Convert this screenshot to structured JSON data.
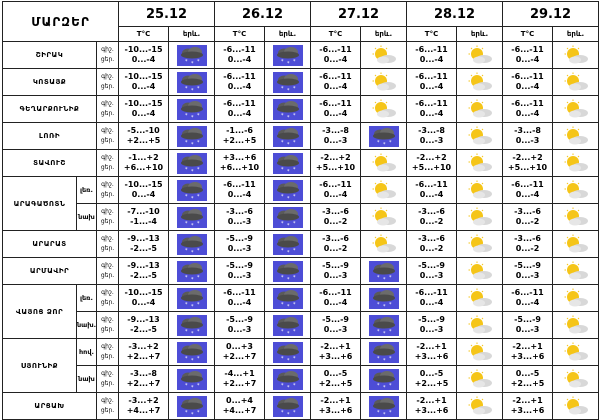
{
  "header": {
    "region_title": "ՄԱՐԶԵՐ",
    "dates": [
      "25.12",
      "26.12",
      "27.12",
      "28.12",
      "29.12"
    ],
    "temp_label": "T°C",
    "icon_label": "երև."
  },
  "labels": {
    "night": "գիշ.",
    "day": "ցեր."
  },
  "regions": [
    {
      "name": "ՇԻՐԱԿ",
      "rows": [
        {
          "sub": "",
          "days": [
            {
              "n": "-10...-15",
              "d": "0...-4",
              "icon": "snow-cloud-icon"
            },
            {
              "n": "-6...-11",
              "d": "0...-4",
              "icon": "snow-cloud-icon"
            },
            {
              "n": "-6...-11",
              "d": "0...-4",
              "icon": "sun-cloud-icon"
            },
            {
              "n": "-6...-11",
              "d": "0...-4",
              "icon": "sun-cloud-icon"
            },
            {
              "n": "-6...-11",
              "d": "0...-4",
              "icon": "sun-cloud-icon"
            }
          ]
        }
      ]
    },
    {
      "name": "ԿՈՏԱՅՔ",
      "rows": [
        {
          "sub": "",
          "days": [
            {
              "n": "-10...-15",
              "d": "0...-4",
              "icon": "snow-cloud-icon"
            },
            {
              "n": "-6...-11",
              "d": "0...-4",
              "icon": "snow-cloud-icon"
            },
            {
              "n": "-6...-11",
              "d": "0...-4",
              "icon": "sun-cloud-icon"
            },
            {
              "n": "-6...-11",
              "d": "0...-4",
              "icon": "sun-cloud-icon"
            },
            {
              "n": "-6...-11",
              "d": "0...-4",
              "icon": "sun-cloud-icon"
            }
          ]
        }
      ]
    },
    {
      "name": "ԳԵՂԱՐՔՈՒՆԻՔ",
      "rows": [
        {
          "sub": "",
          "days": [
            {
              "n": "-10...-15",
              "d": "0...-4",
              "icon": "snow-cloud-icon"
            },
            {
              "n": "-6...-11",
              "d": "0...-4",
              "icon": "snow-cloud-icon"
            },
            {
              "n": "-6...-11",
              "d": "0...-4",
              "icon": "sun-cloud-icon"
            },
            {
              "n": "-6...-11",
              "d": "0...-4",
              "icon": "sun-cloud-icon"
            },
            {
              "n": "-6...-11",
              "d": "0...-4",
              "icon": "sun-cloud-icon"
            }
          ]
        }
      ]
    },
    {
      "name": "ԼՈՌԻ",
      "rows": [
        {
          "sub": "",
          "days": [
            {
              "n": "-5...-10",
              "d": "+2...+5",
              "icon": "snow-cloud-icon"
            },
            {
              "n": "-1...-6",
              "d": "+2...+5",
              "icon": "snow-cloud-icon"
            },
            {
              "n": "-3...-8",
              "d": "0...-3",
              "icon": "snow-cloud-icon"
            },
            {
              "n": "-3...-8",
              "d": "0...-3",
              "icon": "sun-cloud-icon"
            },
            {
              "n": "-3...-8",
              "d": "0...-3",
              "icon": "sun-cloud-icon"
            }
          ]
        }
      ]
    },
    {
      "name": "ՏԱՎՈՒՇ",
      "rows": [
        {
          "sub": "",
          "days": [
            {
              "n": "-1...+2",
              "d": "+6...+10",
              "icon": "snow-cloud-icon"
            },
            {
              "n": "+3...+6",
              "d": "+6...+10",
              "icon": "snow-cloud-icon"
            },
            {
              "n": "-2...+2",
              "d": "+5...+10",
              "icon": "sun-cloud-icon"
            },
            {
              "n": "-2...+2",
              "d": "+5...+10",
              "icon": "sun-cloud-icon"
            },
            {
              "n": "-2...+2",
              "d": "+5...+10",
              "icon": "sun-cloud-icon"
            }
          ]
        }
      ]
    },
    {
      "name": "ԱՐԱԳԱԾՈՏՆ",
      "rows": [
        {
          "sub": "լեռ.",
          "days": [
            {
              "n": "-10...-15",
              "d": "0...-4",
              "icon": "snow-cloud-icon"
            },
            {
              "n": "-6...-11",
              "d": "0...-4",
              "icon": "snow-cloud-icon"
            },
            {
              "n": "-6...-11",
              "d": "0...-4",
              "icon": "sun-cloud-icon"
            },
            {
              "n": "-6...-11",
              "d": "0...-4",
              "icon": "sun-cloud-icon"
            },
            {
              "n": "-6...-11",
              "d": "0...-4",
              "icon": "sun-cloud-icon"
            }
          ]
        },
        {
          "sub": "նախ",
          "days": [
            {
              "n": "-7...-10",
              "d": "-1...-4",
              "icon": "snow-cloud-icon"
            },
            {
              "n": "-3...-6",
              "d": "0...-3",
              "icon": "snow-cloud-icon"
            },
            {
              "n": "-3...-6",
              "d": "0...-2",
              "icon": "sun-cloud-icon"
            },
            {
              "n": "-3...-6",
              "d": "0...-2",
              "icon": "sun-cloud-icon"
            },
            {
              "n": "-3...-6",
              "d": "0...-2",
              "icon": "sun-cloud-icon"
            }
          ]
        }
      ]
    },
    {
      "name": "ԱՐԱՐԱՏ",
      "rows": [
        {
          "sub": "",
          "days": [
            {
              "n": "-9...-13",
              "d": "-2...-5",
              "icon": "snow-cloud-icon"
            },
            {
              "n": "-5...-9",
              "d": "0...-3",
              "icon": "snow-cloud-icon"
            },
            {
              "n": "-3...-6",
              "d": "0...-2",
              "icon": "sun-cloud-icon"
            },
            {
              "n": "-3...-6",
              "d": "0...-2",
              "icon": "sun-cloud-icon"
            },
            {
              "n": "-3...-6",
              "d": "0...-2",
              "icon": "sun-cloud-icon"
            }
          ]
        }
      ]
    },
    {
      "name": "ԱՐՄԱՎԻՐ",
      "rows": [
        {
          "sub": "",
          "days": [
            {
              "n": "-9...-13",
              "d": "-2...-5",
              "icon": "snow-cloud-icon"
            },
            {
              "n": "-5...-9",
              "d": "0...-3",
              "icon": "snow-cloud-icon"
            },
            {
              "n": "-5...-9",
              "d": "0...-3",
              "icon": "snow-cloud-icon"
            },
            {
              "n": "-5...-9",
              "d": "0...-3",
              "icon": "sun-cloud-icon"
            },
            {
              "n": "-5...-9",
              "d": "0...-3",
              "icon": "sun-cloud-icon"
            }
          ]
        }
      ]
    },
    {
      "name": "ՎԱՅՈՑ ՁՈՐ",
      "rows": [
        {
          "sub": "լեռ.",
          "days": [
            {
              "n": "-10...-15",
              "d": "0...-4",
              "icon": "snow-cloud-icon"
            },
            {
              "n": "-6...-11",
              "d": "0...-4",
              "icon": "snow-cloud-icon"
            },
            {
              "n": "-6...-11",
              "d": "0...-4",
              "icon": "snow-cloud-icon"
            },
            {
              "n": "-6...-11",
              "d": "0...-4",
              "icon": "sun-cloud-icon"
            },
            {
              "n": "-6...-11",
              "d": "0...-4",
              "icon": "sun-cloud-icon"
            }
          ]
        },
        {
          "sub": "նախ.",
          "days": [
            {
              "n": "-9...-13",
              "d": "-2...-5",
              "icon": "snow-cloud-icon"
            },
            {
              "n": "-5...-9",
              "d": "0...-3",
              "icon": "snow-cloud-icon"
            },
            {
              "n": "-5...-9",
              "d": "0...-3",
              "icon": "snow-cloud-icon"
            },
            {
              "n": "-5...-9",
              "d": "0...-3",
              "icon": "sun-cloud-icon"
            },
            {
              "n": "-5...-9",
              "d": "0...-3",
              "icon": "sun-cloud-icon"
            }
          ]
        }
      ]
    },
    {
      "name": "ՍՅՈՒՆԻՔ",
      "rows": [
        {
          "sub": "հով.",
          "days": [
            {
              "n": "-3...+2",
              "d": "+2...+7",
              "icon": "snow-cloud-icon"
            },
            {
              "n": "0...+3",
              "d": "+2...+7",
              "icon": "snow-cloud-icon"
            },
            {
              "n": "-2...+1",
              "d": "+3...+6",
              "icon": "snow-cloud-icon"
            },
            {
              "n": "-2...+1",
              "d": "+3...+6",
              "icon": "sun-cloud-icon"
            },
            {
              "n": "-2...+1",
              "d": "+3...+6",
              "icon": "sun-cloud-icon"
            }
          ]
        },
        {
          "sub": "նախ",
          "days": [
            {
              "n": "-3...-8",
              "d": "+2...+7",
              "icon": "snow-cloud-icon"
            },
            {
              "n": "-4...+1",
              "d": "+2...+7",
              "icon": "snow-cloud-icon"
            },
            {
              "n": "0...-5",
              "d": "+2...+5",
              "icon": "snow-cloud-icon"
            },
            {
              "n": "0...-5",
              "d": "+2...+5",
              "icon": "sun-cloud-icon"
            },
            {
              "n": "0...-5",
              "d": "+2...+5",
              "icon": "sun-cloud-icon"
            }
          ]
        }
      ]
    },
    {
      "name": "ԱՐՑԱԽ",
      "rows": [
        {
          "sub": "",
          "days": [
            {
              "n": "-3...+2",
              "d": "+4...+7",
              "icon": "snow-cloud-icon"
            },
            {
              "n": "0...+4",
              "d": "+4...+7",
              "icon": "snow-cloud-icon"
            },
            {
              "n": "-2...+1",
              "d": "+3...+6",
              "icon": "snow-cloud-icon"
            },
            {
              "n": "-2...+1",
              "d": "+3...+6",
              "icon": "sun-cloud-icon"
            },
            {
              "n": "-2...+1",
              "d": "+3...+6",
              "icon": "sun-cloud-icon"
            }
          ]
        }
      ]
    }
  ]
}
